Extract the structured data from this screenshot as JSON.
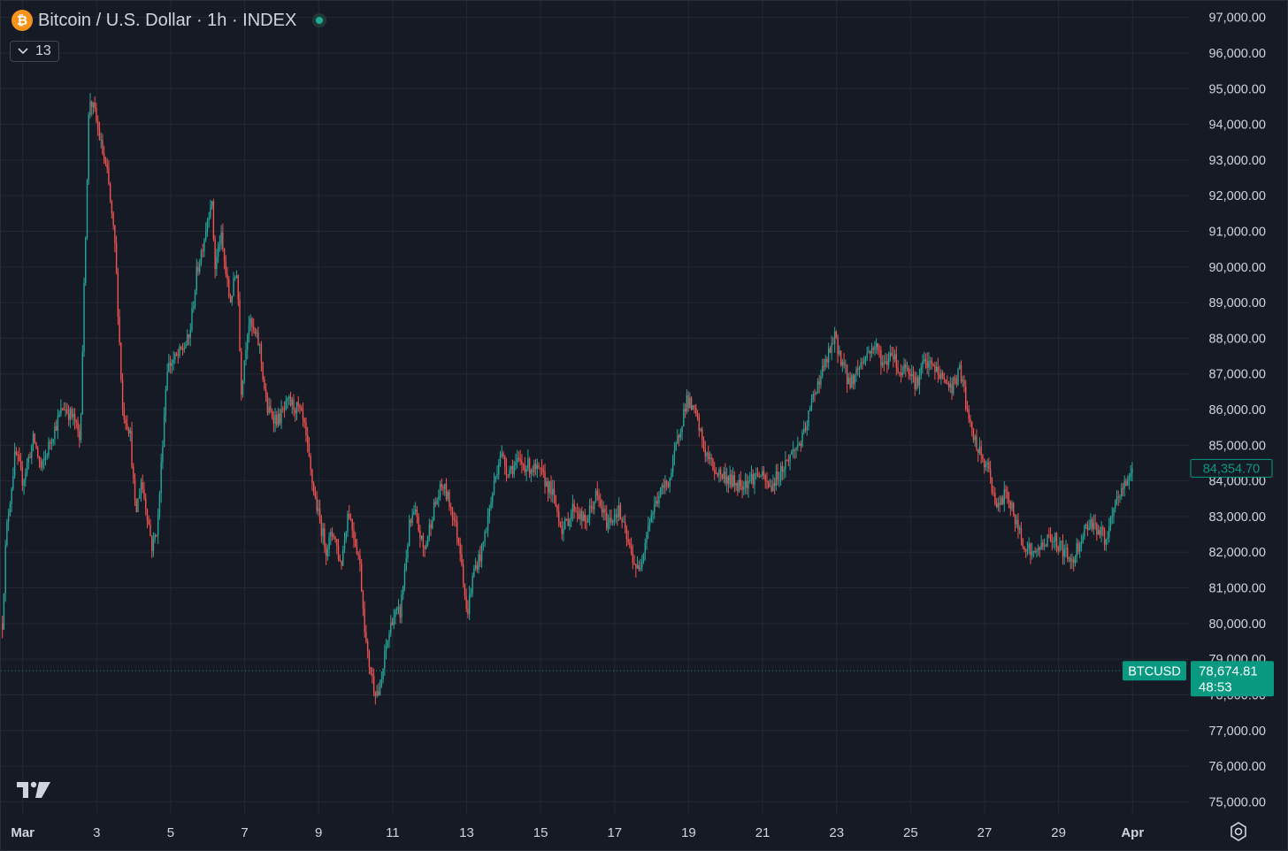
{
  "header": {
    "symbol_icon": "bitcoin-logo-icon",
    "symbol_glyph": "₿",
    "title": "Bitcoin / U.S. Dollar · 1h · INDEX",
    "status_icon": "market-open-dot-icon"
  },
  "indicators_toggle": {
    "icon": "chevron-down-icon",
    "count": "13"
  },
  "footer": {
    "logo": "tradingview-logo-icon",
    "settings_icon": "gear-icon"
  },
  "colors": {
    "background": "#161a25",
    "grid": "#242832",
    "up": "#26a69a",
    "down": "#ef5350",
    "text": "#d1d4dc",
    "current_price": "#089981"
  },
  "chart_data": {
    "type": "candlestick",
    "symbol": "BTCUSD",
    "interval": "1h",
    "ylim": [
      74650,
      97450
    ],
    "y_ticks": [
      "97,000.00",
      "96,000.00",
      "95,000.00",
      "94,000.00",
      "93,000.00",
      "92,000.00",
      "91,000.00",
      "90,000.00",
      "89,000.00",
      "88,000.00",
      "87,000.00",
      "86,000.00",
      "85,000.00",
      "84,000.00",
      "83,000.00",
      "82,000.00",
      "81,000.00",
      "80,000.00",
      "79,000.00",
      "78,000.00",
      "77,000.00",
      "76,000.00",
      "75,000.00"
    ],
    "x_ticks": [
      "Mar",
      "3",
      "5",
      "7",
      "9",
      "11",
      "13",
      "15",
      "17",
      "19",
      "21",
      "23",
      "25",
      "27",
      "29",
      "Apr"
    ],
    "x_tick_days": [
      1,
      3,
      5,
      7,
      9,
      11,
      13,
      15,
      17,
      19,
      21,
      23,
      25,
      27,
      29,
      31
    ],
    "x_range_days": [
      0.41,
      32.5
    ],
    "bold_ticks": [
      "Mar",
      "Apr"
    ],
    "last_price": {
      "label": "84,354.70",
      "value": 84354.7
    },
    "current_price": {
      "symbol": "BTCUSD",
      "label": "78,674.81",
      "value": 78674.81,
      "countdown": "48:53"
    },
    "price_path": [
      [
        0.45,
        80000
      ],
      [
        0.55,
        82500
      ],
      [
        0.8,
        84800
      ],
      [
        1.0,
        84000
      ],
      [
        1.3,
        85200
      ],
      [
        1.5,
        84300
      ],
      [
        1.8,
        85300
      ],
      [
        2.1,
        86100
      ],
      [
        2.4,
        85700
      ],
      [
        2.55,
        85100
      ],
      [
        2.7,
        91000
      ],
      [
        2.8,
        94800
      ],
      [
        2.95,
        94300
      ],
      [
        3.1,
        93500
      ],
      [
        3.3,
        92500
      ],
      [
        3.5,
        90500
      ],
      [
        3.7,
        86000
      ],
      [
        3.9,
        85400
      ],
      [
        4.05,
        83000
      ],
      [
        4.2,
        84000
      ],
      [
        4.35,
        83200
      ],
      [
        4.5,
        82100
      ],
      [
        4.65,
        82800
      ],
      [
        4.9,
        87200
      ],
      [
        5.2,
        87500
      ],
      [
        5.5,
        88000
      ],
      [
        5.7,
        89800
      ],
      [
        5.9,
        90800
      ],
      [
        6.1,
        92000
      ],
      [
        6.2,
        90000
      ],
      [
        6.35,
        90900
      ],
      [
        6.6,
        89000
      ],
      [
        6.8,
        90000
      ],
      [
        6.9,
        86500
      ],
      [
        7.1,
        88500
      ],
      [
        7.4,
        87800
      ],
      [
        7.6,
        86000
      ],
      [
        7.9,
        85700
      ],
      [
        8.2,
        86200
      ],
      [
        8.45,
        86000
      ],
      [
        8.6,
        85600
      ],
      [
        8.8,
        84100
      ],
      [
        9.0,
        83000
      ],
      [
        9.2,
        82100
      ],
      [
        9.4,
        82600
      ],
      [
        9.6,
        81600
      ],
      [
        9.8,
        83200
      ],
      [
        10.1,
        81800
      ],
      [
        10.3,
        79200
      ],
      [
        10.5,
        78200
      ],
      [
        10.65,
        78000
      ],
      [
        10.8,
        79200
      ],
      [
        11.0,
        80200
      ],
      [
        11.2,
        80300
      ],
      [
        11.45,
        82700
      ],
      [
        11.6,
        83100
      ],
      [
        11.85,
        82000
      ],
      [
        12.1,
        83200
      ],
      [
        12.35,
        83900
      ],
      [
        12.6,
        83200
      ],
      [
        12.85,
        82000
      ],
      [
        13.0,
        80200
      ],
      [
        13.2,
        81500
      ],
      [
        13.4,
        82000
      ],
      [
        13.6,
        83100
      ],
      [
        13.9,
        84800
      ],
      [
        14.1,
        84300
      ],
      [
        14.4,
        84500
      ],
      [
        14.7,
        84400
      ],
      [
        15.0,
        84200
      ],
      [
        15.3,
        83700
      ],
      [
        15.6,
        82600
      ],
      [
        15.9,
        83300
      ],
      [
        16.2,
        82800
      ],
      [
        16.5,
        83600
      ],
      [
        16.8,
        82800
      ],
      [
        17.1,
        83200
      ],
      [
        17.4,
        82100
      ],
      [
        17.65,
        81400
      ],
      [
        17.9,
        82800
      ],
      [
        18.2,
        83600
      ],
      [
        18.5,
        84100
      ],
      [
        18.75,
        85400
      ],
      [
        18.95,
        86300
      ],
      [
        19.2,
        85800
      ],
      [
        19.45,
        84800
      ],
      [
        19.7,
        84300
      ],
      [
        20.0,
        84100
      ],
      [
        20.3,
        83900
      ],
      [
        20.6,
        84000
      ],
      [
        20.9,
        84200
      ],
      [
        21.2,
        83800
      ],
      [
        21.5,
        84300
      ],
      [
        21.8,
        84800
      ],
      [
        22.1,
        85200
      ],
      [
        22.4,
        86500
      ],
      [
        22.7,
        87300
      ],
      [
        22.95,
        88000
      ],
      [
        23.1,
        87500
      ],
      [
        23.35,
        86700
      ],
      [
        23.6,
        87200
      ],
      [
        23.85,
        87600
      ],
      [
        24.05,
        87800
      ],
      [
        24.3,
        87200
      ],
      [
        24.5,
        87700
      ],
      [
        24.7,
        87000
      ],
      [
        24.9,
        87300
      ],
      [
        25.15,
        86700
      ],
      [
        25.35,
        87300
      ],
      [
        25.6,
        87200
      ],
      [
        25.85,
        86900
      ],
      [
        26.1,
        86600
      ],
      [
        26.35,
        87100
      ],
      [
        26.6,
        85500
      ],
      [
        26.85,
        84800
      ],
      [
        27.1,
        84300
      ],
      [
        27.35,
        83200
      ],
      [
        27.6,
        83700
      ],
      [
        27.85,
        82800
      ],
      [
        28.1,
        82200
      ],
      [
        28.35,
        81900
      ],
      [
        28.6,
        82300
      ],
      [
        28.85,
        82400
      ],
      [
        29.1,
        82100
      ],
      [
        29.35,
        81700
      ],
      [
        29.6,
        82400
      ],
      [
        29.85,
        82900
      ],
      [
        30.1,
        82600
      ],
      [
        30.3,
        82300
      ],
      [
        30.55,
        83400
      ],
      [
        30.8,
        83900
      ],
      [
        31.0,
        84354.7
      ]
    ]
  }
}
